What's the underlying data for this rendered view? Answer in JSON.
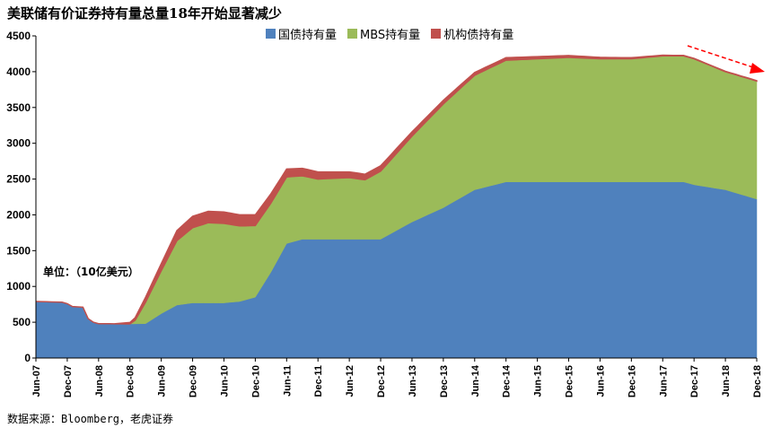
{
  "title": "美联储有价证券持有量总量18年开始显著减少",
  "unit_label": "单位：（10亿美元）",
  "source": "数据来源：Bloomberg，老虎证券",
  "colors": {
    "treasury": "#4F81BD",
    "mbs": "#9BBB59",
    "agency": "#C0504D",
    "trend_arrow": "#FF0000"
  },
  "chart_data": {
    "type": "area",
    "stacked": true,
    "title": "美联储有价证券持有量总量18年开始显著减少",
    "ylim": [
      0,
      4500
    ],
    "yticks": [
      0,
      500,
      1000,
      1500,
      2000,
      2500,
      3000,
      3500,
      4000,
      4500
    ],
    "xtick_labels": [
      "Jun-07",
      "Dec-07",
      "Jun-08",
      "Dec-08",
      "Jun-09",
      "Dec-09",
      "Jun-10",
      "Dec-10",
      "Jun-11",
      "Dec-11",
      "Jun-12",
      "Dec-12",
      "Jun-13",
      "Dec-13",
      "Jun-14",
      "Dec-14",
      "Jun-15",
      "Dec-15",
      "Jun-16",
      "Dec-16",
      "Jun-17",
      "Dec-17",
      "Jun-18",
      "Dec-18"
    ],
    "legend_position": "top",
    "series": [
      {
        "name": "国债持有量",
        "color": "#4F81BD",
        "points": [
          [
            "Jun-07",
            790
          ],
          [
            "Nov-07",
            780
          ],
          [
            "Dec-07",
            760
          ],
          [
            "Jan-08",
            720
          ],
          [
            "Mar-08",
            710
          ],
          [
            "Apr-08",
            550
          ],
          [
            "May-08",
            500
          ],
          [
            "Jun-08",
            480
          ],
          [
            "Dec-08",
            476
          ],
          [
            "Mar-09",
            480
          ],
          [
            "Jun-09",
            620
          ],
          [
            "Sep-09",
            740
          ],
          [
            "Dec-09",
            770
          ],
          [
            "Jun-10",
            770
          ],
          [
            "Sep-10",
            790
          ],
          [
            "Dec-10",
            850
          ],
          [
            "Mar-11",
            1200
          ],
          [
            "Jun-11",
            1600
          ],
          [
            "Sep-11",
            1660
          ],
          [
            "Dec-11",
            1660
          ],
          [
            "Jun-12",
            1660
          ],
          [
            "Dec-12",
            1660
          ],
          [
            "Jun-13",
            1900
          ],
          [
            "Dec-13",
            2100
          ],
          [
            "Jun-14",
            2350
          ],
          [
            "Dec-14",
            2460
          ],
          [
            "Jun-15",
            2460
          ],
          [
            "Dec-15",
            2460
          ],
          [
            "Jun-16",
            2460
          ],
          [
            "Dec-16",
            2460
          ],
          [
            "Jun-17",
            2460
          ],
          [
            "Oct-17",
            2460
          ],
          [
            "Dec-17",
            2420
          ],
          [
            "Jun-18",
            2350
          ],
          [
            "Dec-18",
            2220
          ]
        ]
      },
      {
        "name": "MBS持有量",
        "color": "#9BBB59",
        "points": [
          [
            "Jun-07",
            0
          ],
          [
            "Dec-08",
            0
          ],
          [
            "Jan-09",
            50
          ],
          [
            "Mar-09",
            300
          ],
          [
            "Jun-09",
            600
          ],
          [
            "Sep-09",
            900
          ],
          [
            "Dec-09",
            1050
          ],
          [
            "Mar-10",
            1120
          ],
          [
            "Jun-10",
            1110
          ],
          [
            "Dec-10",
            1000
          ],
          [
            "Jun-11",
            930
          ],
          [
            "Dec-11",
            840
          ],
          [
            "Jun-12",
            860
          ],
          [
            "Sep-12",
            830
          ],
          [
            "Dec-12",
            950
          ],
          [
            "Jun-13",
            1200
          ],
          [
            "Dec-13",
            1450
          ],
          [
            "Jun-14",
            1600
          ],
          [
            "Dec-14",
            1700
          ],
          [
            "Jun-15",
            1720
          ],
          [
            "Dec-15",
            1740
          ],
          [
            "Jun-16",
            1720
          ],
          [
            "Dec-16",
            1720
          ],
          [
            "Jun-17",
            1760
          ],
          [
            "Dec-17",
            1760
          ],
          [
            "Jun-18",
            1650
          ],
          [
            "Dec-18",
            1650
          ]
        ]
      },
      {
        "name": "机构债持有量",
        "color": "#C0504D",
        "points": [
          [
            "Jun-07",
            0
          ],
          [
            "Sep-08",
            0
          ],
          [
            "Dec-08",
            20
          ],
          [
            "Mar-09",
            70
          ],
          [
            "Jun-09",
            100
          ],
          [
            "Sep-09",
            140
          ],
          [
            "Dec-09",
            160
          ],
          [
            "Jun-10",
            160
          ],
          [
            "Dec-10",
            150
          ],
          [
            "Jun-11",
            110
          ],
          [
            "Dec-11",
            100
          ],
          [
            "Jun-12",
            80
          ],
          [
            "Dec-12",
            75
          ],
          [
            "Jun-13",
            60
          ],
          [
            "Dec-13",
            50
          ],
          [
            "Jun-14",
            40
          ],
          [
            "Dec-14",
            35
          ],
          [
            "Jun-15",
            30
          ],
          [
            "Dec-15",
            25
          ],
          [
            "Jun-16",
            20
          ],
          [
            "Dec-16",
            15
          ],
          [
            "Jun-17",
            10
          ],
          [
            "Dec-17",
            5
          ],
          [
            "Dec-18",
            5
          ]
        ]
      }
    ]
  }
}
